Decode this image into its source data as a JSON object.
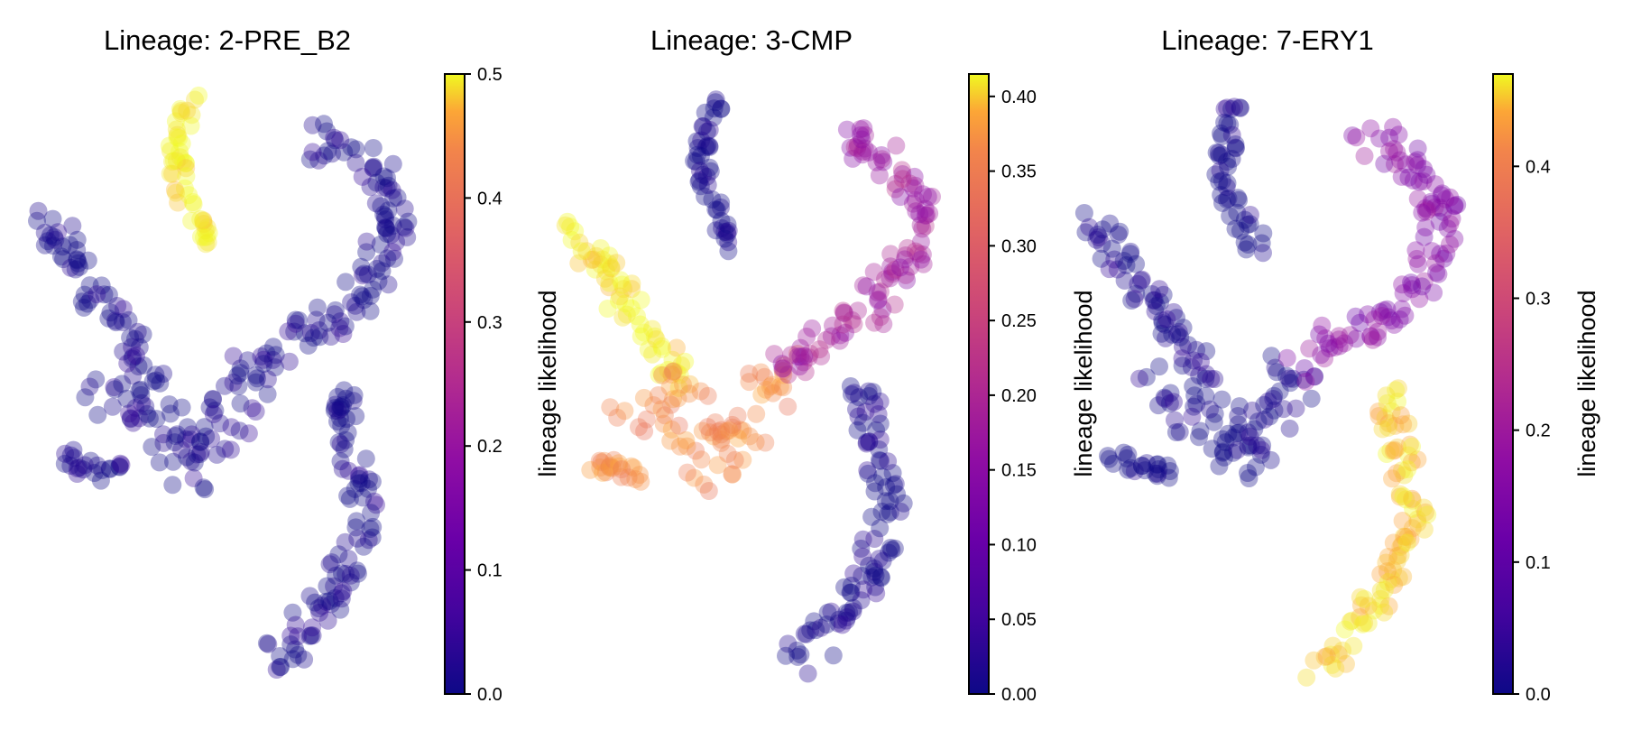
{
  "chart_data": [
    {
      "type": "scatter",
      "title": "Lineage: 2-PRE_B2",
      "colorbar_label": "lineage likelihood",
      "color_range": [
        0.0,
        0.5
      ],
      "colorbar_ticks": [
        "0.0",
        "0.1",
        "0.2",
        "0.3",
        "0.4",
        "0.5"
      ],
      "tick_values": [
        0.0,
        0.1,
        0.2,
        0.3,
        0.4,
        0.5
      ],
      "colormap": "plasma",
      "axes": "off",
      "high_value_branch": "top-left short arm",
      "branch_values": {
        "short_top_arm": 0.5,
        "left_arm": 0.0,
        "center_body": 0.0,
        "right_arm": 0.0,
        "lower_arm": 0.0
      }
    },
    {
      "type": "scatter",
      "title": "Lineage: 3-CMP",
      "colorbar_label": "lineage likelihood",
      "color_range": [
        0.0,
        0.415
      ],
      "colorbar_ticks": [
        "0.00",
        "0.05",
        "0.10",
        "0.15",
        "0.20",
        "0.25",
        "0.30",
        "0.35",
        "0.40"
      ],
      "tick_values": [
        0.0,
        0.05,
        0.1,
        0.15,
        0.2,
        0.25,
        0.3,
        0.35,
        0.4
      ],
      "colormap": "plasma",
      "axes": "off",
      "high_value_branch": "left diagonal arm",
      "branch_values": {
        "short_top_arm": 0.0,
        "left_arm": 0.41,
        "center_body": 0.33,
        "right_arm": 0.16,
        "lower_arm": 0.0
      }
    },
    {
      "type": "scatter",
      "title": "Lineage: 7-ERY1",
      "colorbar_label": "lineage likelihood",
      "color_range": [
        0.0,
        0.47
      ],
      "colorbar_ticks": [
        "0.0",
        "0.1",
        "0.2",
        "0.3",
        "0.4"
      ],
      "tick_values": [
        0.0,
        0.1,
        0.2,
        0.3,
        0.4
      ],
      "colormap": "plasma",
      "axes": "off",
      "high_value_branch": "lower arm",
      "branch_values": {
        "short_top_arm": 0.0,
        "left_arm": 0.0,
        "center_body": 0.0,
        "right_arm": 0.14,
        "lower_arm": 0.44
      }
    }
  ]
}
